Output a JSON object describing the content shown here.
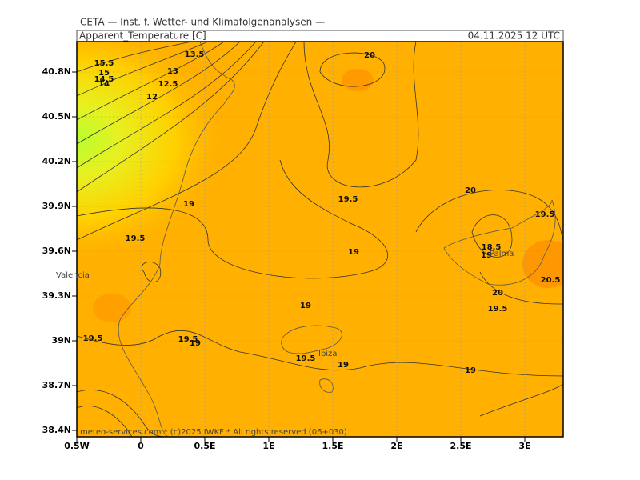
{
  "header": {
    "source": "CETA — Inst. f. Wetter- und Klimafolgenanalysen —",
    "parameter": "Apparent_Temperature [C]",
    "valid_time": "04.11.2025 12 UTC"
  },
  "map": {
    "lat_labels": [
      "40.8N",
      "40.5N",
      "40.2N",
      "39.9N",
      "39.6N",
      "39.3N",
      "39N",
      "38.7N",
      "38.4N"
    ],
    "lon_labels": [
      "0.5W",
      "0",
      "0.5E",
      "1E",
      "1.5E",
      "2E",
      "2.5E",
      "3E"
    ],
    "contour_labels": [
      "15.5",
      "15",
      "14.5",
      "14",
      "13.5",
      "13",
      "12.5",
      "12",
      "20",
      "19",
      "19.5",
      "19.5",
      "19",
      "19",
      "19.5",
      "19",
      "19.5",
      "19.5",
      "19",
      "19",
      "19.5",
      "18.5",
      "19",
      "20",
      "19.5",
      "20.5",
      "20"
    ],
    "places": [
      "Valencia",
      "Ibiza",
      "Palma"
    ],
    "copyright": "meteo-services.com * (c)2025 IWKF * All rights reserved (06+030)"
  }
}
